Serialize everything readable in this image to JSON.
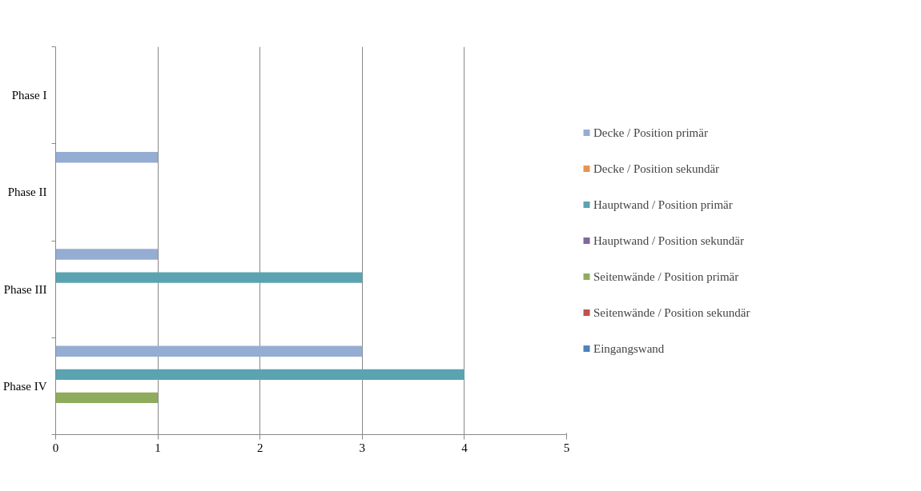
{
  "chart_data": {
    "type": "bar",
    "orientation": "horizontal",
    "categories": [
      "Phase I",
      "Phase II",
      "Phase III",
      "Phase IV"
    ],
    "xlim": [
      0,
      5
    ],
    "xticks": [
      0,
      1,
      2,
      3,
      4,
      5
    ],
    "grid": "x",
    "legend": "right",
    "series": [
      {
        "name": "Decke / Position primär",
        "color": "#95acd3",
        "values": [
          0,
          1,
          1,
          3
        ]
      },
      {
        "name": "Decke / Position sekundär",
        "color": "#e8944e",
        "values": [
          0,
          0,
          0,
          0
        ]
      },
      {
        "name": "Hauptwand / Position primär",
        "color": "#5ba3b0",
        "values": [
          0,
          0,
          3,
          4
        ]
      },
      {
        "name": "Hauptwand / Position sekundär",
        "color": "#7f679f",
        "values": [
          0,
          0,
          0,
          0
        ]
      },
      {
        "name": "Seitenwände / Position primär",
        "color": "#8fac5d",
        "values": [
          0,
          0,
          0,
          1
        ]
      },
      {
        "name": "Seitenwände / Position sekundär",
        "color": "#c0504d",
        "values": [
          0,
          0,
          0,
          0
        ]
      },
      {
        "name": "Eingangswand",
        "color": "#4f81bd",
        "values": [
          0,
          0,
          0,
          0
        ]
      }
    ]
  }
}
